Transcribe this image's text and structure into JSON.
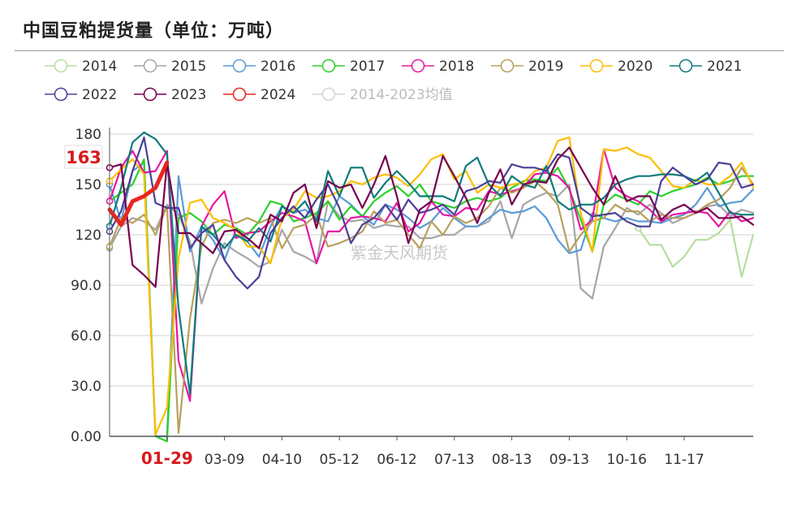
{
  "header": {
    "title": "中国豆粕提货量（单位：万吨）"
  },
  "watermark": "紫金天风期货",
  "highlight": {
    "value_label": "163",
    "x_label": "01-29",
    "color": "#d7191c"
  },
  "chart_data": {
    "type": "line",
    "title": "中国豆粕提货量（单位：万吨）",
    "ylim": [
      0,
      180
    ],
    "yticks": [
      "0.00",
      "30.0",
      "60.0",
      "90.0",
      "120",
      "150",
      "180"
    ],
    "xticks": [
      "01-29",
      "03-09",
      "04-10",
      "05-12",
      "06-12",
      "07-13",
      "08-13",
      "09-13",
      "10-16",
      "11-17"
    ],
    "xtick_index": [
      5,
      10,
      15,
      20,
      25,
      30,
      35,
      40,
      45,
      50
    ],
    "n_points": 57,
    "grid": true,
    "legend_position": "top",
    "series": [
      {
        "name": "2014",
        "color": "#b5dea0",
        "values": [
          null,
          null,
          null,
          null,
          null,
          null,
          null,
          null,
          null,
          null,
          null,
          null,
          null,
          null,
          null,
          null,
          null,
          null,
          null,
          null,
          null,
          null,
          null,
          null,
          null,
          null,
          null,
          null,
          null,
          null,
          null,
          null,
          null,
          null,
          null,
          null,
          null,
          null,
          null,
          null,
          null,
          null,
          null,
          null,
          null,
          null,
          124,
          114,
          114,
          101,
          107,
          117,
          117,
          121,
          129,
          95,
          120
        ]
      },
      {
        "name": "2015",
        "color": "#a6a6a6",
        "values": [
          112,
          125,
          130,
          128,
          123,
          138,
          132,
          116,
          79,
          100,
          115,
          110,
          106,
          101,
          104,
          123,
          110,
          107,
          103,
          140,
          131,
          128,
          129,
          124,
          126,
          125,
          125,
          118,
          118,
          120,
          120,
          125,
          125,
          128,
          140,
          118,
          138,
          142,
          145,
          143,
          150,
          88,
          82,
          113,
          124,
          136,
          132,
          138,
          133,
          127,
          130,
          133,
          137,
          138,
          131,
          135,
          133
        ]
      },
      {
        "name": "2016",
        "color": "#5b9bd5",
        "values": [
          150,
          128,
          158,
          163,
          0,
          0,
          155,
          110,
          125,
          117,
          105,
          123,
          116,
          107,
          125,
          137,
          133,
          135,
          130,
          128,
          143,
          138,
          131,
          126,
          138,
          135,
          130,
          124,
          128,
          136,
          130,
          125,
          125,
          130,
          135,
          133,
          134,
          137,
          130,
          117,
          109,
          111,
          133,
          130,
          128,
          130,
          128,
          128,
          127,
          130,
          132,
          138,
          148,
          137,
          139,
          140,
          147
        ]
      },
      {
        "name": "2017",
        "color": "#2bd02b",
        "values": [
          140,
          145,
          150,
          165,
          0,
          -3,
          130,
          133,
          128,
          120,
          126,
          124,
          120,
          128,
          140,
          138,
          128,
          130,
          133,
          140,
          129,
          137,
          131,
          140,
          145,
          149,
          143,
          150,
          140,
          138,
          136,
          140,
          142,
          140,
          142,
          148,
          152,
          153,
          152,
          160,
          147,
          129,
          110,
          138,
          144,
          141,
          138,
          146,
          143,
          146,
          148,
          150,
          154,
          150,
          152,
          155,
          155
        ]
      },
      {
        "name": "2018",
        "color": "#e617a3",
        "values": [
          140,
          160,
          170,
          157,
          158,
          170,
          45,
          21,
          125,
          138,
          146,
          118,
          121,
          122,
          128,
          133,
          131,
          128,
          103,
          122,
          122,
          130,
          131,
          130,
          128,
          139,
          122,
          127,
          140,
          132,
          131,
          136,
          135,
          146,
          144,
          146,
          148,
          156,
          157,
          155,
          148,
          123,
          129,
          171,
          148,
          143,
          140,
          135,
          128,
          132,
          133,
          134,
          133,
          125,
          134,
          128,
          130
        ]
      },
      {
        "name": "2019",
        "color": "#b8a05c",
        "values": [
          113,
          130,
          127,
          132,
          120,
          137,
          2,
          70,
          113,
          127,
          129,
          127,
          130,
          127,
          130,
          112,
          124,
          126,
          132,
          113,
          115,
          118,
          122,
          134,
          127,
          129,
          120,
          112,
          128,
          120,
          131,
          127,
          130,
          137,
          148,
          145,
          148,
          152,
          146,
          138,
          110,
          120,
          128,
          130,
          138,
          134,
          134,
          128,
          132,
          130,
          130,
          133,
          138,
          141,
          148,
          160,
          150
        ]
      },
      {
        "name": "2020",
        "color": "#fdbd00",
        "values": [
          152,
          159,
          165,
          156,
          1,
          17,
          106,
          139,
          141,
          130,
          127,
          123,
          113,
          113,
          103,
          130,
          135,
          146,
          142,
          143,
          146,
          152,
          150,
          154,
          156,
          154,
          149,
          156,
          165,
          168,
          153,
          158,
          145,
          150,
          148,
          150,
          151,
          158,
          160,
          176,
          178,
          133,
          110,
          171,
          170,
          172,
          168,
          166,
          158,
          149,
          148,
          153,
          150,
          150,
          155,
          163,
          148
        ]
      },
      {
        "name": "2021",
        "color": "#0d7b7d",
        "values": [
          125,
          148,
          175,
          181,
          177,
          168,
          76,
          25,
          125,
          120,
          112,
          120,
          116,
          124,
          116,
          137,
          133,
          140,
          128,
          158,
          143,
          160,
          160,
          142,
          151,
          158,
          151,
          143,
          143,
          143,
          140,
          161,
          166,
          150,
          143,
          155,
          150,
          148,
          161,
          140,
          135,
          138,
          138,
          142,
          150,
          153,
          155,
          155,
          156,
          156,
          155,
          152,
          157,
          145,
          133,
          132,
          132
        ]
      },
      {
        "name": "2022",
        "color": "#4b3f98",
        "values": [
          122,
          134,
          158,
          178,
          139,
          136,
          136,
          112,
          121,
          126,
          105,
          95,
          88,
          95,
          121,
          130,
          137,
          130,
          141,
          150,
          136,
          115,
          126,
          130,
          138,
          129,
          141,
          133,
          135,
          138,
          132,
          146,
          148,
          152,
          151,
          162,
          160,
          160,
          158,
          168,
          166,
          136,
          131,
          132,
          133,
          128,
          125,
          125,
          152,
          160,
          155,
          150,
          153,
          163,
          162,
          148,
          150
        ]
      },
      {
        "name": "2023",
        "color": "#76004e",
        "values": [
          160,
          162,
          102,
          96,
          89,
          163,
          121,
          121,
          115,
          109,
          122,
          123,
          118,
          112,
          132,
          128,
          145,
          150,
          124,
          152,
          148,
          150,
          136,
          150,
          167,
          143,
          115,
          135,
          140,
          167,
          155,
          142,
          127,
          145,
          159,
          138,
          150,
          152,
          151,
          165,
          172,
          160,
          148,
          138,
          155,
          140,
          143,
          143,
          129,
          135,
          138,
          133,
          136,
          130,
          130,
          131,
          126
        ]
      },
      {
        "name": "2024",
        "color": "#e8261f",
        "values": [
          135,
          126,
          140,
          143,
          148,
          163,
          null,
          null,
          null,
          null,
          null,
          null,
          null,
          null,
          null,
          null,
          null,
          null,
          null,
          null,
          null,
          null,
          null,
          null,
          null,
          null,
          null,
          null,
          null,
          null,
          null,
          null,
          null,
          null,
          null,
          null,
          null,
          null,
          null,
          null,
          null,
          null,
          null,
          null,
          null,
          null,
          null,
          null,
          null,
          null,
          null,
          null,
          null,
          null,
          null,
          null,
          null
        ]
      },
      {
        "name": "2014-2023均值",
        "color": "#d4d4d4",
        "values": []
      }
    ]
  }
}
